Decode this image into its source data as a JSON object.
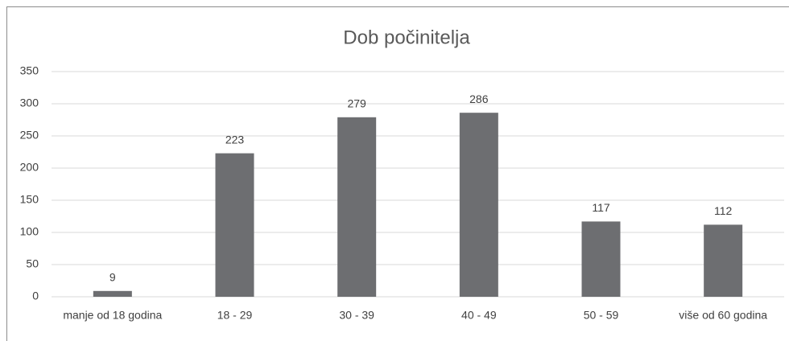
{
  "chart_data": {
    "type": "bar",
    "title": "Dob počinitelja",
    "categories": [
      "manje od 18 godina",
      "18 - 29",
      "30 - 39",
      "40 - 49",
      "50 - 59",
      "više od 60 godina"
    ],
    "values": [
      9,
      223,
      279,
      286,
      117,
      112
    ],
    "color": "#6d6e71",
    "ylim": [
      0,
      350
    ],
    "yticks": [
      0,
      50,
      100,
      150,
      200,
      250,
      300,
      350
    ],
    "grid": true,
    "data_labels": true
  }
}
